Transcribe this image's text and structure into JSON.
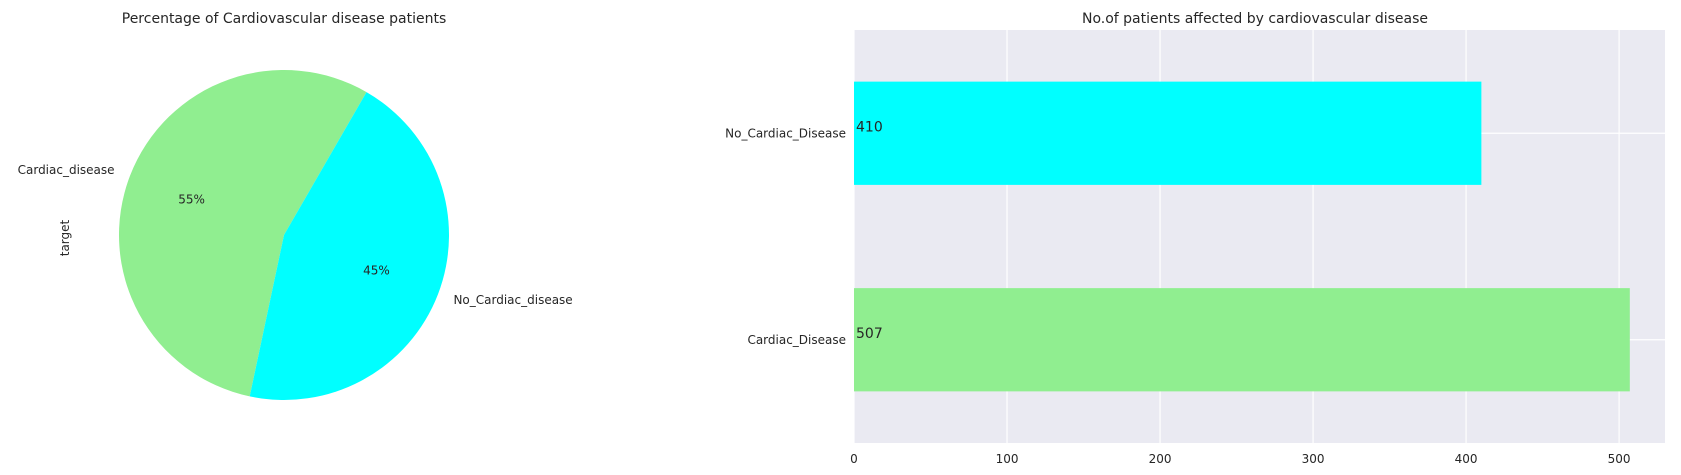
{
  "chart_data": [
    {
      "type": "pie",
      "title": "Percentage of Cardiovascular disease patients",
      "ylabel": "target",
      "slices": [
        {
          "label": "Cardiac_disease",
          "value": 55,
          "pct_label": "55%",
          "color": "#90ee90"
        },
        {
          "label": "No_Cardiac_disease",
          "value": 45,
          "pct_label": "45%",
          "color": "#00ffff"
        }
      ]
    },
    {
      "type": "bar",
      "orientation": "horizontal",
      "title": "No.of patients affected by cardiovascular disease",
      "categories": [
        "No_Cardiac_Disease",
        "Cardiac_Disease"
      ],
      "values": [
        410,
        507
      ],
      "value_labels": [
        "410",
        "507"
      ],
      "colors": [
        "#00ffff",
        "#90ee90"
      ],
      "xlim": [
        0,
        530
      ],
      "xticks": [
        0,
        100,
        200,
        300,
        400,
        500
      ],
      "grid": true,
      "background": "#eaeaf2"
    }
  ]
}
